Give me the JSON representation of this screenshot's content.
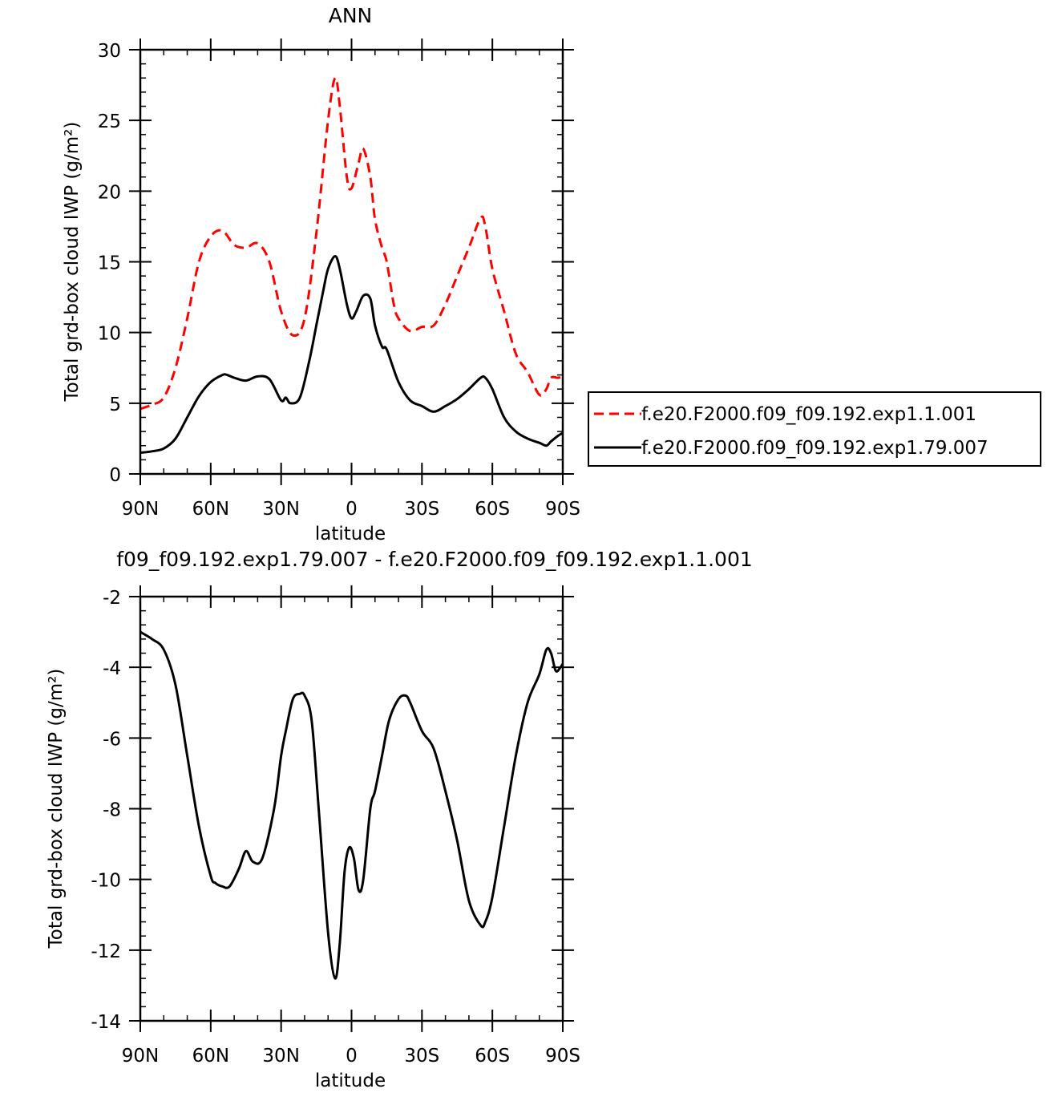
{
  "chart_data": [
    {
      "type": "line",
      "title": "ANN",
      "xlabel": "latitude",
      "ylabel": "Total grd-box cloud IWP (g/m²)",
      "xlim": [
        -90,
        90
      ],
      "ylim": [
        0,
        30
      ],
      "xticks": [
        -90,
        -60,
        -30,
        0,
        30,
        60,
        90
      ],
      "xtick_labels": [
        "90N",
        "60N",
        "30N",
        "0",
        "30S",
        "60S",
        "90S"
      ],
      "yticks": [
        0,
        5,
        10,
        15,
        20,
        25,
        30
      ],
      "ytick_labels": [
        "0",
        "5",
        "10",
        "15",
        "20",
        "25",
        "30"
      ],
      "grid": false,
      "legend_position": "right",
      "series": [
        {
          "name": "f.e20.F2000.f09_f09.192.exp1.1.001",
          "color": "#ff0000",
          "dash": "dashed",
          "x": [
            -90,
            -85,
            -80,
            -75,
            -70,
            -65,
            -60,
            -55,
            -50,
            -45,
            -40,
            -35,
            -30,
            -25,
            -20,
            -15,
            -10,
            -7,
            -5,
            -2,
            0,
            3,
            5,
            8,
            10,
            13,
            15,
            18,
            20,
            25,
            30,
            35,
            40,
            45,
            50,
            55,
            57,
            60,
            65,
            70,
            75,
            80,
            83,
            85,
            88,
            90
          ],
          "values": [
            4.6,
            4.9,
            5.4,
            7.5,
            11,
            15,
            16.8,
            17.2,
            16.2,
            16.0,
            16.3,
            15.0,
            11.5,
            9.8,
            11,
            17,
            25,
            28,
            26,
            21,
            20.2,
            22,
            23,
            21,
            18,
            16,
            15,
            12,
            11,
            10.1,
            10.4,
            10.5,
            12,
            14,
            16,
            18.1,
            17.5,
            14.5,
            11.5,
            8.5,
            7.2,
            5.6,
            6.0,
            6.8,
            6.8,
            6.9
          ]
        },
        {
          "name": "f.e20.F2000.f09_f09.192.exp1.79.007",
          "color": "#000000",
          "dash": "solid",
          "x": [
            -90,
            -85,
            -80,
            -75,
            -70,
            -65,
            -60,
            -55,
            -53,
            -50,
            -45,
            -40,
            -35,
            -30,
            -28,
            -26,
            -22,
            -18,
            -15,
            -12,
            -10,
            -7,
            -5,
            -2,
            0,
            2,
            5,
            8,
            10,
            13,
            15,
            20,
            25,
            30,
            35,
            40,
            45,
            50,
            55,
            57,
            60,
            65,
            70,
            75,
            80,
            83,
            85,
            88,
            90
          ],
          "values": [
            1.5,
            1.6,
            1.8,
            2.5,
            4,
            5.5,
            6.5,
            7.0,
            7.0,
            6.8,
            6.6,
            6.9,
            6.7,
            5.2,
            5.4,
            5.0,
            5.4,
            8,
            10.5,
            13,
            14.5,
            15.4,
            14.5,
            12,
            11,
            11.5,
            12.6,
            12.4,
            10.5,
            9.0,
            8.8,
            6.5,
            5.2,
            4.8,
            4.4,
            4.8,
            5.3,
            6,
            6.8,
            6.8,
            6.0,
            4.0,
            3.0,
            2.5,
            2.2,
            2.0,
            2.3,
            2.7,
            2.9
          ]
        }
      ]
    },
    {
      "type": "line",
      "title": "f09_f09.192.exp1.79.007 - f.e20.F2000.f09_f09.192.exp1.1.001",
      "xlabel": "latitude",
      "ylabel": "Total grd-box cloud IWP (g/m²)",
      "xlim": [
        -90,
        90
      ],
      "ylim": [
        -14,
        -2
      ],
      "xticks": [
        -90,
        -60,
        -30,
        0,
        30,
        60,
        90
      ],
      "xtick_labels": [
        "90N",
        "60N",
        "30N",
        "0",
        "30S",
        "60S",
        "90S"
      ],
      "yticks": [
        -14,
        -12,
        -10,
        -8,
        -6,
        -4,
        -2
      ],
      "ytick_labels": [
        "-14",
        "-12",
        "-10",
        "-8",
        "-6",
        "-4",
        "-2"
      ],
      "grid": false,
      "series": [
        {
          "color": "#000000",
          "dash": "solid",
          "x": [
            -90,
            -85,
            -80,
            -75,
            -70,
            -65,
            -60,
            -58,
            -55,
            -52,
            -48,
            -45,
            -42,
            -38,
            -33,
            -30,
            -28,
            -25,
            -22,
            -20,
            -17,
            -14,
            -10,
            -7,
            -5,
            -3,
            -1,
            1,
            3,
            5,
            8,
            10,
            13,
            16,
            20,
            23,
            25,
            30,
            35,
            40,
            45,
            50,
            55,
            57,
            60,
            65,
            70,
            75,
            80,
            83,
            85,
            87,
            89,
            90
          ],
          "values": [
            -3.0,
            -3.2,
            -3.5,
            -4.5,
            -6.5,
            -8.5,
            -9.9,
            -10.1,
            -10.2,
            -10.2,
            -9.7,
            -9.2,
            -9.5,
            -9.4,
            -8.0,
            -6.5,
            -5.8,
            -4.9,
            -4.75,
            -4.8,
            -5.5,
            -8.0,
            -11.5,
            -12.8,
            -11.8,
            -9.8,
            -9.1,
            -9.4,
            -10.3,
            -10.0,
            -8.0,
            -7.5,
            -6.5,
            -5.5,
            -4.9,
            -4.8,
            -5.0,
            -5.8,
            -6.3,
            -7.5,
            -8.9,
            -10.6,
            -11.3,
            -11.2,
            -10.5,
            -8.5,
            -6.5,
            -5.0,
            -4.2,
            -3.5,
            -3.6,
            -4.1,
            -4.0,
            -3.9
          ]
        }
      ]
    }
  ]
}
